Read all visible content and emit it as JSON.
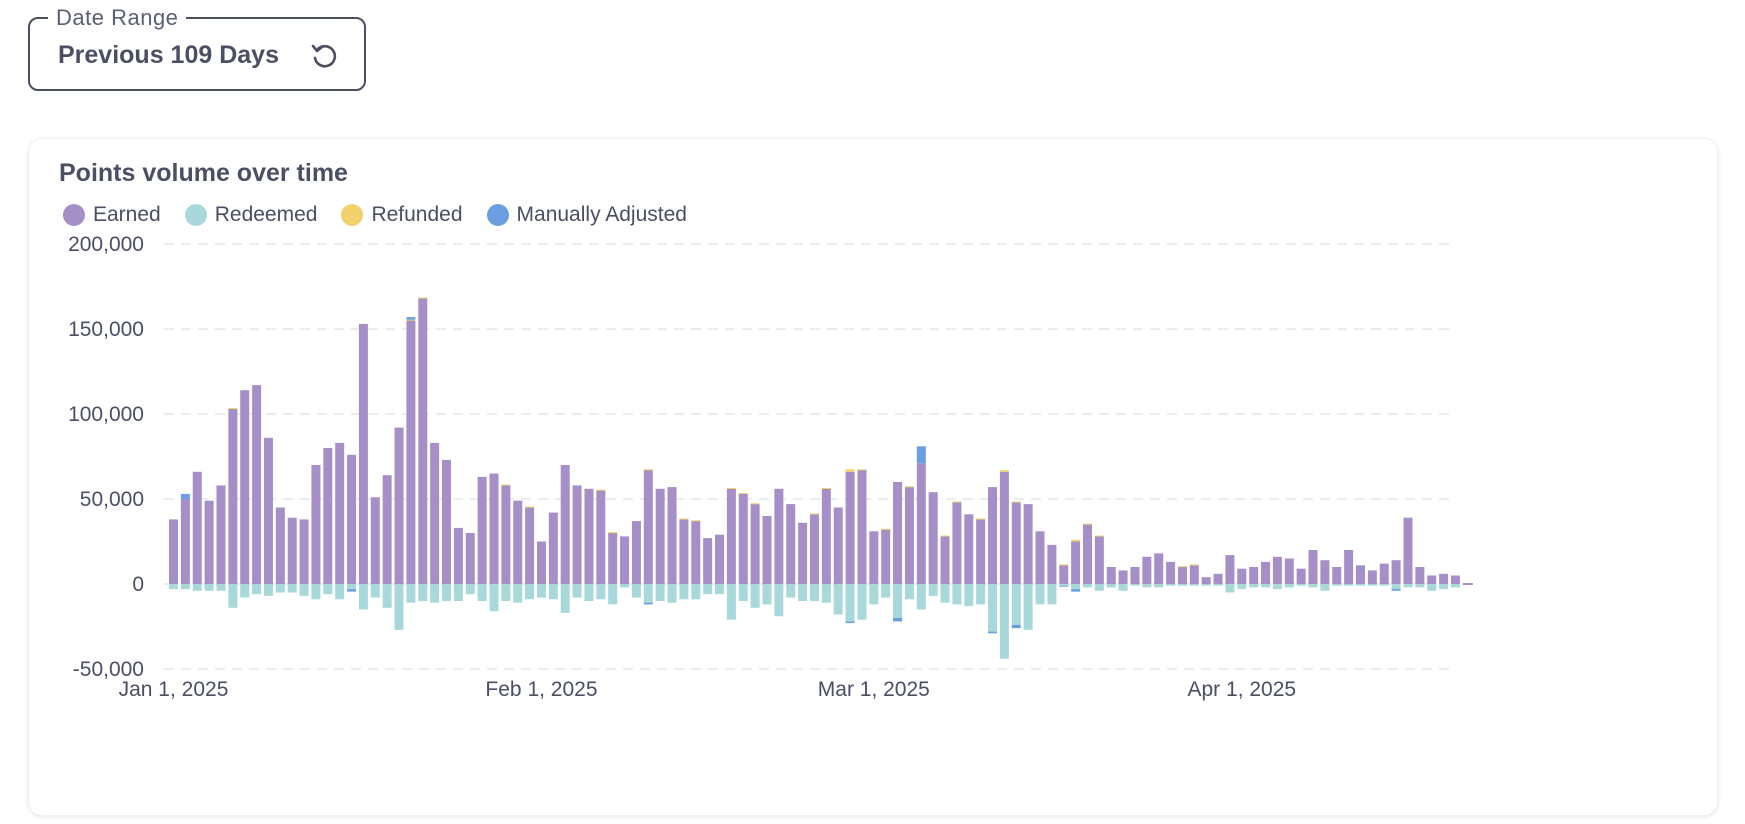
{
  "filter": {
    "legend_label": "Date Range",
    "value": "Previous 109 Days",
    "reset_icon": "reset-icon"
  },
  "card": {
    "title": "Points volume over time"
  },
  "colors": {
    "earned": "#a68fc7",
    "redeemed": "#a9d8da",
    "refunded": "#f0d16c",
    "manually_adjusted": "#6c9fdf",
    "grid": "#e4e6ea",
    "text": "#4a4f63"
  },
  "legend": [
    {
      "label": "Earned",
      "color": "#a68fc7"
    },
    {
      "label": "Redeemed",
      "color": "#a9d8da"
    },
    {
      "label": "Refunded",
      "color": "#f0d16c"
    },
    {
      "label": "Manually Adjusted",
      "color": "#6c9fdf"
    }
  ],
  "chart_data": {
    "type": "bar",
    "stacked": true,
    "title": "Points volume over time",
    "xlabel": "",
    "ylabel": "",
    "ylim": [
      -50000,
      200000
    ],
    "yticks": [
      -50000,
      0,
      50000,
      100000,
      150000,
      200000
    ],
    "ytick_labels": [
      "-50,000",
      "0",
      "50,000",
      "100,000",
      "150,000",
      "200,000"
    ],
    "x_start": "2025-01-01",
    "xtick_labels": [
      {
        "date": "2025-01-01",
        "label": "Jan 1, 2025"
      },
      {
        "date": "2025-02-01",
        "label": "Feb 1, 2025"
      },
      {
        "date": "2025-03-01",
        "label": "Mar 1, 2025"
      },
      {
        "date": "2025-04-01",
        "label": "Apr 1, 2025"
      }
    ],
    "legend_position": "top-left",
    "grid": true,
    "series": [
      {
        "name": "Earned",
        "color": "#a68fc7",
        "values": [
          38000,
          50000,
          66000,
          49000,
          58000,
          103000,
          114000,
          117000,
          86000,
          45000,
          39000,
          38000,
          70000,
          80000,
          83000,
          76000,
          153000,
          51000,
          64000,
          92000,
          155000,
          168000,
          83000,
          73000,
          33000,
          30000,
          63000,
          65000,
          58000,
          49000,
          45000,
          25000,
          42000,
          70000,
          58000,
          56000,
          55000,
          30000,
          28000,
          37000,
          67000,
          56000,
          57000,
          38000,
          37000,
          27000,
          29000,
          56000,
          53000,
          47000,
          40000,
          56000,
          47000,
          36000,
          41000,
          56000,
          45000,
          66000,
          67000,
          31000,
          32000,
          60000,
          57000,
          71000,
          54000,
          28000,
          48000,
          41000,
          38000,
          57000,
          66000,
          48000,
          47000,
          31000,
          23000,
          11000,
          25000,
          35000,
          28000,
          10000,
          8000,
          10000,
          16000,
          18000,
          13000,
          10000,
          11000,
          4000,
          6000,
          17000,
          9000,
          10000,
          13000,
          16000,
          15000,
          9000,
          20000,
          14000,
          10000,
          20000,
          11000,
          8000,
          12000,
          14000,
          39000,
          10000,
          5000,
          6000,
          5000
        ]
      },
      {
        "name": "Redeemed",
        "color": "#a9d8da",
        "values": [
          -3000,
          -3000,
          -4000,
          -4000,
          -4000,
          -14000,
          -8000,
          -6000,
          -7000,
          -5000,
          -5000,
          -7000,
          -9000,
          -6000,
          -9000,
          -3000,
          -15000,
          -8000,
          -14000,
          -27000,
          -11000,
          -10000,
          -11000,
          -10000,
          -10000,
          -6000,
          -10000,
          -16000,
          -10000,
          -11000,
          -9000,
          -8000,
          -9000,
          -17000,
          -8000,
          -10000,
          -9000,
          -12000,
          -2000,
          -8000,
          -11000,
          -10000,
          -11000,
          -9000,
          -9000,
          -6000,
          -6000,
          -21000,
          -10000,
          -14000,
          -12000,
          -19000,
          -8000,
          -10000,
          -10000,
          -11000,
          -18000,
          -22000,
          -21000,
          -12000,
          -8000,
          -20000,
          -9000,
          -15000,
          -7000,
          -11000,
          -12000,
          -13000,
          -12000,
          -28000,
          -44000,
          -24000,
          -27000,
          -12000,
          -12000,
          -1000,
          -3000,
          -2000,
          -4000,
          -2000,
          -4000,
          -1000,
          -2000,
          -2000,
          -1000,
          -1000,
          -1000,
          -1000,
          -1000,
          -5000,
          -3000,
          -2000,
          -2000,
          -3000,
          -2000,
          -1000,
          -2000,
          -4000,
          -1000,
          -1000,
          -1000,
          -1000,
          -1000,
          -3000,
          -2000,
          -2000,
          -4000,
          -3000,
          -2000
        ]
      },
      {
        "name": "Refunded",
        "color": "#f0d16c",
        "values": [
          0,
          0,
          0,
          0,
          0,
          500,
          0,
          0,
          0,
          0,
          0,
          0,
          0,
          0,
          0,
          0,
          0,
          0,
          0,
          0,
          500,
          500,
          0,
          0,
          0,
          0,
          0,
          0,
          500,
          0,
          500,
          0,
          0,
          0,
          0,
          0,
          500,
          500,
          0,
          0,
          500,
          0,
          0,
          500,
          500,
          0,
          0,
          500,
          500,
          500,
          0,
          0,
          0,
          0,
          500,
          500,
          0,
          1500,
          500,
          0,
          500,
          0,
          500,
          0,
          0,
          500,
          500,
          0,
          500,
          0,
          1000,
          500,
          0,
          0,
          0,
          500,
          1000,
          500,
          500,
          0,
          0,
          0,
          0,
          0,
          0,
          500,
          500,
          0,
          0,
          0,
          0,
          0,
          0,
          0,
          0,
          0,
          0,
          0,
          0,
          0,
          0,
          0,
          0,
          0,
          0,
          0,
          0,
          0,
          0
        ]
      },
      {
        "name": "Manually Adjusted",
        "color": "#6c9fdf",
        "values": [
          0,
          3000,
          0,
          0,
          0,
          0,
          0,
          0,
          0,
          0,
          0,
          0,
          0,
          0,
          0,
          -1500,
          0,
          0,
          0,
          0,
          1500,
          0,
          0,
          0,
          0,
          0,
          0,
          0,
          0,
          0,
          0,
          0,
          0,
          0,
          0,
          0,
          0,
          0,
          0,
          0,
          -1000,
          0,
          0,
          0,
          0,
          0,
          0,
          0,
          0,
          0,
          0,
          0,
          0,
          0,
          0,
          0,
          0,
          -1000,
          0,
          0,
          0,
          -2000,
          0,
          10000,
          0,
          0,
          0,
          0,
          0,
          -1000,
          0,
          -2000,
          0,
          0,
          0,
          -500,
          -1500,
          0,
          0,
          0,
          0,
          0,
          0,
          0,
          0,
          0,
          0,
          0,
          0,
          0,
          0,
          0,
          0,
          0,
          0,
          0,
          0,
          0,
          0,
          0,
          0,
          0,
          0,
          -1000,
          0,
          0,
          0,
          0,
          0
        ]
      }
    ]
  }
}
